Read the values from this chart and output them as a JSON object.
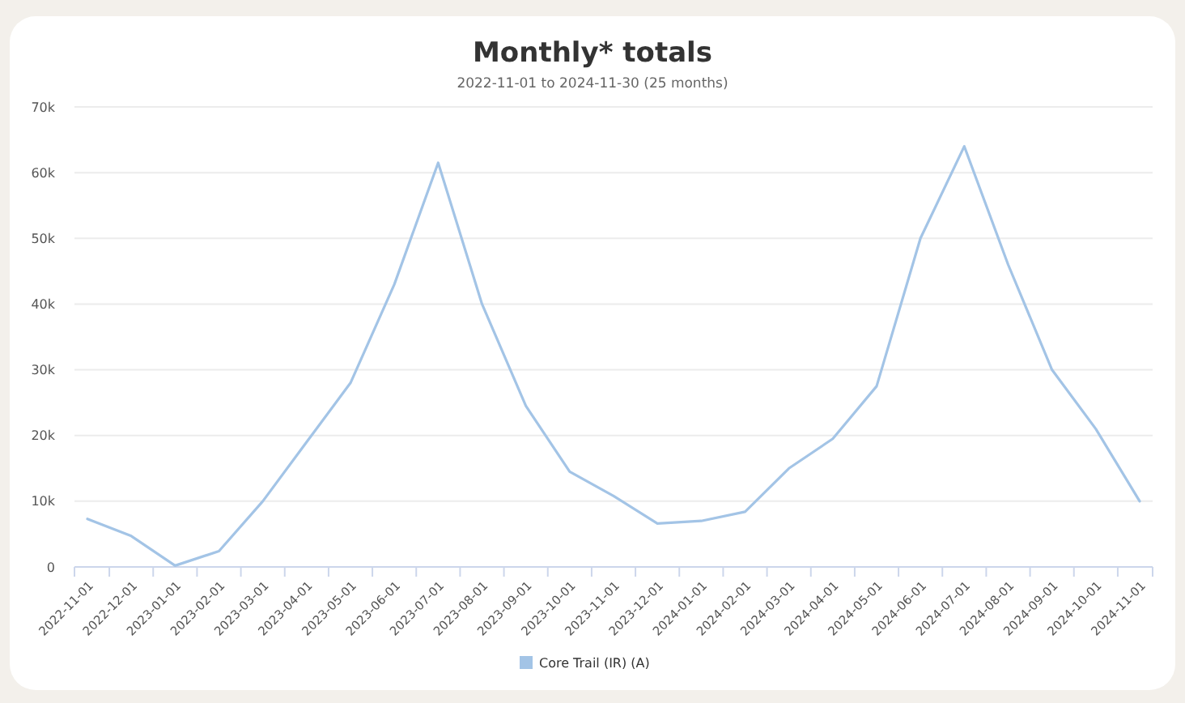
{
  "chart_data": {
    "type": "line",
    "title": "Monthly* totals",
    "subtitle": "2022-11-01 to 2024-11-30 (25 months)",
    "categories": [
      "2022-11-01",
      "2022-12-01",
      "2023-01-01",
      "2023-02-01",
      "2023-03-01",
      "2023-04-01",
      "2023-05-01",
      "2023-06-01",
      "2023-07-01",
      "2023-08-01",
      "2023-09-01",
      "2023-10-01",
      "2023-11-01",
      "2023-12-01",
      "2024-01-01",
      "2024-02-01",
      "2024-03-01",
      "2024-04-01",
      "2024-05-01",
      "2024-06-01",
      "2024-07-01",
      "2024-08-01",
      "2024-09-01",
      "2024-10-01",
      "2024-11-01"
    ],
    "series": [
      {
        "name": "Core Trail (IR) (A)",
        "color": "#a3c4e6",
        "values": [
          7300,
          4700,
          200,
          2400,
          10000,
          19000,
          28000,
          43000,
          61500,
          40000,
          24500,
          14500,
          10800,
          6600,
          7000,
          8400,
          15000,
          19500,
          27500,
          50000,
          64000,
          46000,
          30000,
          21000,
          10000
        ]
      }
    ],
    "ylim": [
      0,
      70000
    ],
    "yticks": [
      {
        "value": 0,
        "label": "0"
      },
      {
        "value": 10000,
        "label": "10k"
      },
      {
        "value": 20000,
        "label": "20k"
      },
      {
        "value": 30000,
        "label": "30k"
      },
      {
        "value": 40000,
        "label": "40k"
      },
      {
        "value": 50000,
        "label": "50k"
      },
      {
        "value": 60000,
        "label": "60k"
      },
      {
        "value": 70000,
        "label": "70k"
      }
    ],
    "grid": "y",
    "legend": "bottom",
    "marker": "none",
    "line_style": "solid"
  }
}
